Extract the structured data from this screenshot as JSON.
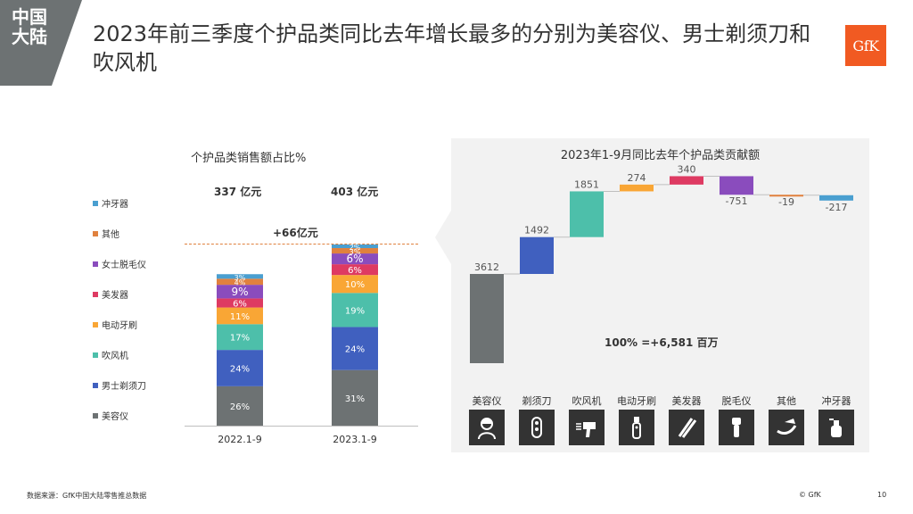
{
  "region_tag": "中国大陆",
  "title": "2023年前三季度个护品类同比去年增长最多的分别为美容仪、男士剃须刀和吹风机",
  "logo": "GfK",
  "footer": {
    "source": "数据来源：GfK中国大陆零售推总数据",
    "copyright": "© GfK",
    "page": "10"
  },
  "chart_data": [
    {
      "type": "bar",
      "stacked": true,
      "title": "个护品类销售额占比%",
      "categories": [
        "2022.1-9",
        "2023.1-9"
      ],
      "totals": [
        "337 亿元",
        "403 亿元"
      ],
      "totals_value": [
        337,
        403
      ],
      "difference_label": "+66亿元",
      "series": [
        {
          "name": "美容仪",
          "color": "#6d7273",
          "values": [
            26,
            31
          ],
          "labels": [
            "26%",
            "31%"
          ]
        },
        {
          "name": "男士剃须刀",
          "color": "#4060bf",
          "values": [
            24,
            24
          ],
          "labels": [
            "24%",
            "24%"
          ]
        },
        {
          "name": "吹风机",
          "color": "#4dbfaa",
          "values": [
            17,
            19
          ],
          "labels": [
            "17%",
            "19%"
          ]
        },
        {
          "name": "电动牙刷",
          "color": "#f9a635",
          "values": [
            11,
            10
          ],
          "labels": [
            "11%",
            "10%"
          ]
        },
        {
          "name": "美发器",
          "color": "#de3a62",
          "values": [
            6,
            6
          ],
          "labels": [
            "6%",
            "6%"
          ]
        },
        {
          "name": "女士脱毛仪",
          "color": "#8a4cbd",
          "values": [
            9,
            6
          ],
          "labels": [
            "9%",
            "6%"
          ]
        },
        {
          "name": "其他",
          "color": "#e0813e",
          "values": [
            4,
            3
          ],
          "labels": [
            "4%",
            "3%"
          ]
        },
        {
          "name": "冲牙器",
          "color": "#4a9fd0",
          "values": [
            3,
            2
          ],
          "labels": [
            "3%",
            "2%"
          ]
        }
      ],
      "legend_order": [
        "冲牙器",
        "其他",
        "女士脱毛仪",
        "美发器",
        "电动牙刷",
        "吹风机",
        "男士剃须刀",
        "美容仪"
      ]
    },
    {
      "type": "bar",
      "subtype": "waterfall",
      "title": "2023年1-9月同比去年个护品类贡献额",
      "categories": [
        "美容仪",
        "剃须刀",
        "吹风机",
        "电动牙刷",
        "美发器",
        "脱毛仪",
        "其他",
        "冲牙器"
      ],
      "values": [
        3612,
        1492,
        1851,
        274,
        340,
        -751,
        -19,
        -217
      ],
      "labels": [
        "3612",
        "1492",
        "1851",
        "274",
        "340",
        "-751",
        "-19",
        "-217"
      ],
      "colors": [
        "#6d7273",
        "#4060bf",
        "#4dbfaa",
        "#f9a635",
        "#de3a62",
        "#8a4cbd",
        "#e0813e",
        "#4a9fd0"
      ],
      "total_note": "100% =+6,581 百万",
      "icons": [
        "woman-face-icon",
        "shaver-icon",
        "hair-dryer-icon",
        "electric-toothbrush-icon",
        "hair-straightener-icon",
        "epilator-icon",
        "other-products-icon",
        "water-flosser-icon"
      ]
    }
  ]
}
